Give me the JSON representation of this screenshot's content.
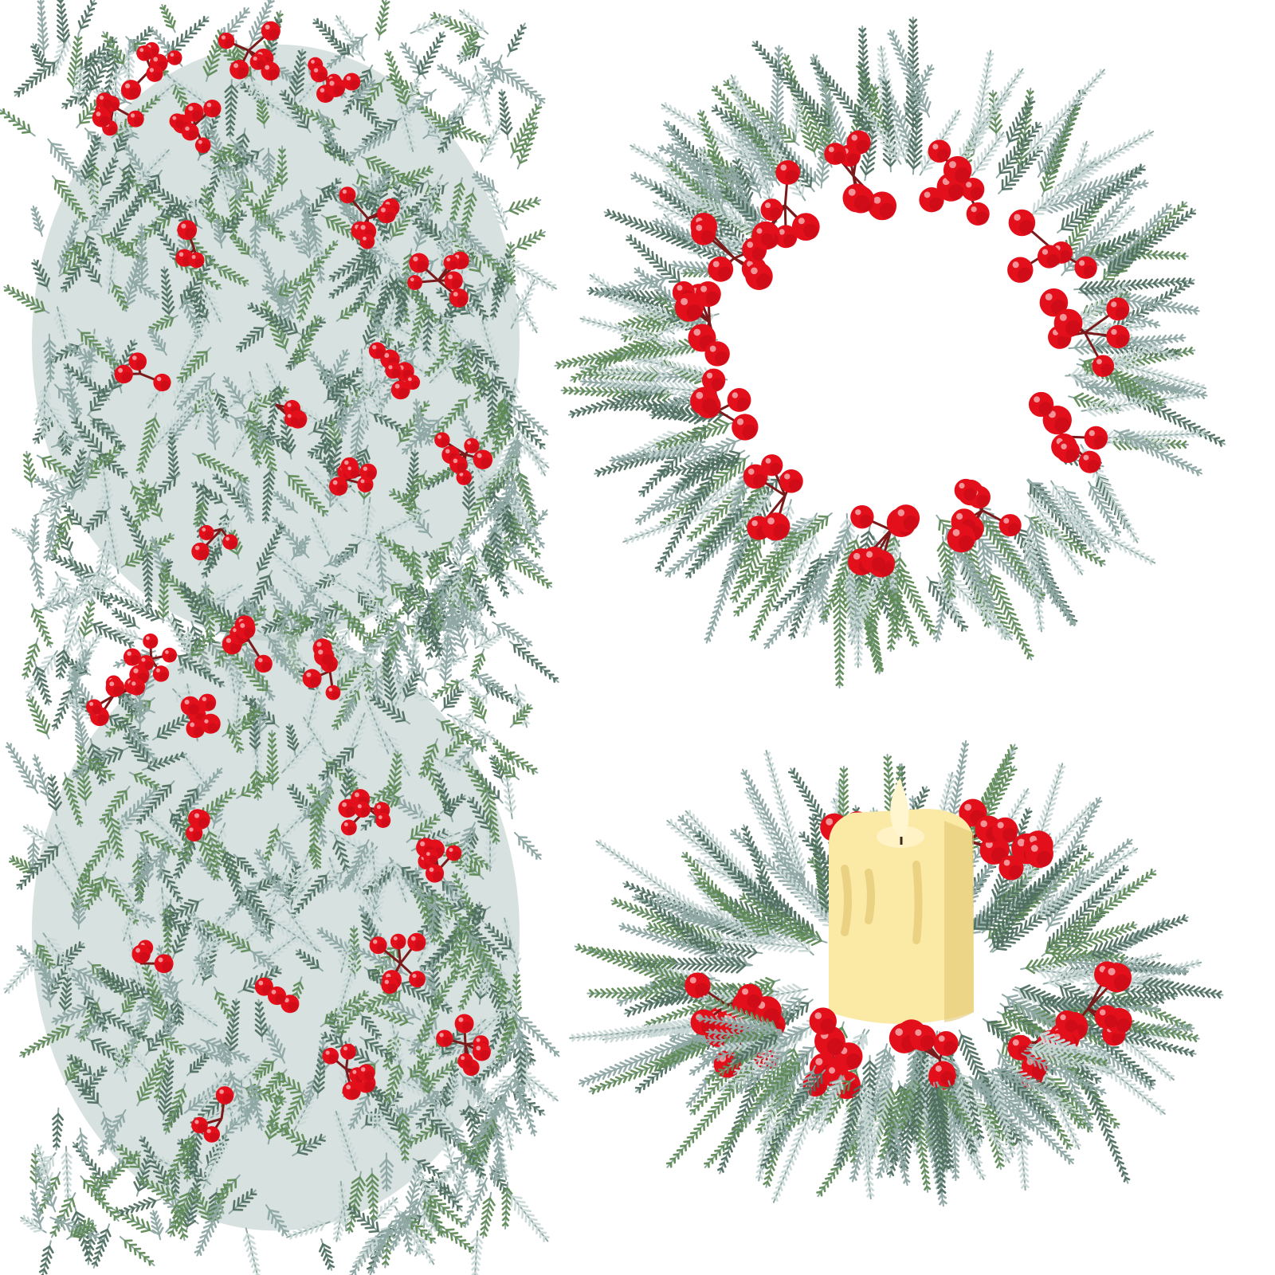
{
  "image": {
    "background": "#ffffff",
    "palette": {
      "needle_light": "#c9d8d6",
      "needle_mid": "#8fa8a4",
      "needle_dark": "#4f6e5f",
      "needle_green": "#5f8a55",
      "stem": "#7a1a1a",
      "berry": "#e3101c",
      "berry_dark": "#a8060f",
      "candle": "#fbe9a6",
      "candle_shade": "#e2c873",
      "flame": "#fff6d0"
    },
    "panels": [
      {
        "id": "garland-coil-top",
        "kind": "coiled-garland"
      },
      {
        "id": "wreath-ring",
        "kind": "open-wreath"
      },
      {
        "id": "garland-coil-bottom",
        "kind": "coiled-garland"
      },
      {
        "id": "candle-ring",
        "kind": "wreath-with-candle"
      }
    ]
  }
}
